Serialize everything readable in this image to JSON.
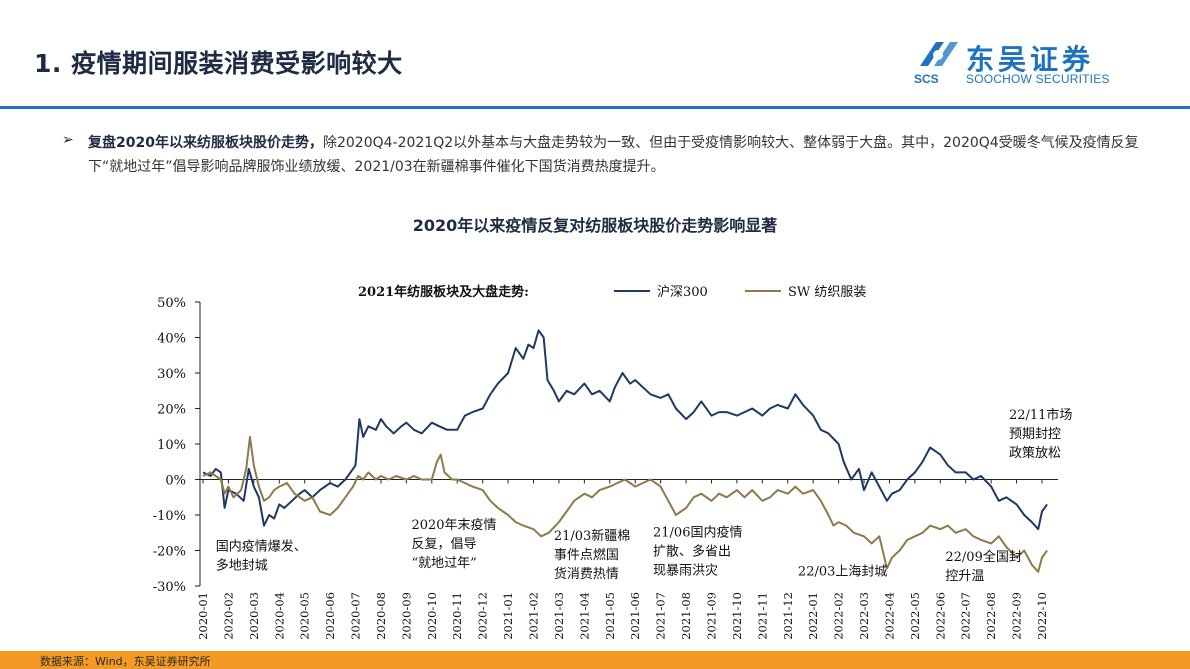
{
  "header": {
    "title": "1. 疫情期间服装消费受影响较大",
    "logo_cn": "东吴证券",
    "logo_scs": "SCS",
    "logo_en": "SOOCHOW SECURITIES"
  },
  "bullet": {
    "marker": "➢",
    "bold": "复盘2020年以来纺服板块股价走势，",
    "text": "除2020Q4-2021Q2以外基本与大盘走势较为一致、但由于受疫情影响较大、整体弱于大盘。其中，2020Q4受暖冬气候及疫情反复下“就地过年”倡导影响品牌服饰业绩放缓、2021/03在新疆棉事件催化下国货消费热度提升。"
  },
  "chart_heading": "2020年以来疫情反复对纺服板块股价走势影响显著",
  "footer": {
    "source": "数据来源：Wind，东吴证券研究所"
  },
  "chart_data": {
    "type": "line",
    "title": "2021年纺服板块及大盘走势:",
    "ylim": [
      -30,
      50
    ],
    "yticks": [
      "50%",
      "40%",
      "30%",
      "20%",
      "10%",
      "0%",
      "-10%",
      "-20%",
      "-30%"
    ],
    "xticks": [
      "2020-01",
      "2020-02",
      "2020-03",
      "2020-04",
      "2020-05",
      "2020-06",
      "2020-07",
      "2020-08",
      "2020-09",
      "2020-10",
      "2020-11",
      "2020-12",
      "2021-01",
      "2021-02",
      "2021-03",
      "2021-04",
      "2021-05",
      "2021-06",
      "2021-07",
      "2021-08",
      "2021-09",
      "2021-10",
      "2021-11",
      "2021-12",
      "2022-01",
      "2022-02",
      "2022-03",
      "2022-04",
      "2022-05",
      "2022-06",
      "2022-07",
      "2022-08",
      "2022-09",
      "2022-10"
    ],
    "legend_position": "top",
    "colors": {
      "hs300": "#1f3864",
      "sw": "#8c7a4a",
      "axis": "#222222"
    },
    "series": [
      {
        "name": "沪深300",
        "points": [
          [
            0.0,
            2
          ],
          [
            0.3,
            1
          ],
          [
            0.5,
            3
          ],
          [
            0.7,
            2
          ],
          [
            0.85,
            -8
          ],
          [
            1.0,
            -3
          ],
          [
            1.3,
            -4
          ],
          [
            1.6,
            -6
          ],
          [
            1.8,
            3
          ],
          [
            2.0,
            -2
          ],
          [
            2.2,
            -5
          ],
          [
            2.4,
            -13
          ],
          [
            2.6,
            -10
          ],
          [
            2.8,
            -11
          ],
          [
            3.0,
            -7
          ],
          [
            3.2,
            -8
          ],
          [
            3.5,
            -6
          ],
          [
            3.8,
            -4
          ],
          [
            4.0,
            -3
          ],
          [
            4.3,
            -5
          ],
          [
            4.6,
            -3
          ],
          [
            5.0,
            -1
          ],
          [
            5.3,
            -2
          ],
          [
            5.6,
            0
          ],
          [
            5.8,
            2
          ],
          [
            6.0,
            4
          ],
          [
            6.15,
            17
          ],
          [
            6.3,
            12
          ],
          [
            6.5,
            15
          ],
          [
            6.8,
            14
          ],
          [
            7.0,
            17
          ],
          [
            7.2,
            15
          ],
          [
            7.5,
            13
          ],
          [
            7.8,
            15
          ],
          [
            8.0,
            16
          ],
          [
            8.3,
            14
          ],
          [
            8.6,
            13
          ],
          [
            9.0,
            16
          ],
          [
            9.3,
            15
          ],
          [
            9.6,
            14
          ],
          [
            10.0,
            14
          ],
          [
            10.3,
            18
          ],
          [
            10.6,
            19
          ],
          [
            11.0,
            20
          ],
          [
            11.3,
            24
          ],
          [
            11.6,
            27
          ],
          [
            12.0,
            30
          ],
          [
            12.3,
            37
          ],
          [
            12.6,
            34
          ],
          [
            12.8,
            38
          ],
          [
            13.0,
            37
          ],
          [
            13.2,
            42
          ],
          [
            13.4,
            40
          ],
          [
            13.55,
            28
          ],
          [
            13.8,
            25
          ],
          [
            14.0,
            22
          ],
          [
            14.3,
            25
          ],
          [
            14.6,
            24
          ],
          [
            15.0,
            27
          ],
          [
            15.3,
            24
          ],
          [
            15.6,
            25
          ],
          [
            16.0,
            22
          ],
          [
            16.2,
            26
          ],
          [
            16.5,
            30
          ],
          [
            16.8,
            27
          ],
          [
            17.0,
            28
          ],
          [
            17.3,
            26
          ],
          [
            17.6,
            24
          ],
          [
            18.0,
            23
          ],
          [
            18.3,
            24
          ],
          [
            18.6,
            20
          ],
          [
            19.0,
            17
          ],
          [
            19.3,
            19
          ],
          [
            19.6,
            22
          ],
          [
            20.0,
            18
          ],
          [
            20.3,
            19
          ],
          [
            20.6,
            19
          ],
          [
            21.0,
            18
          ],
          [
            21.3,
            19
          ],
          [
            21.6,
            20
          ],
          [
            22.0,
            18
          ],
          [
            22.3,
            20
          ],
          [
            22.6,
            21
          ],
          [
            23.0,
            20
          ],
          [
            23.3,
            24
          ],
          [
            23.6,
            21
          ],
          [
            24.0,
            18
          ],
          [
            24.3,
            14
          ],
          [
            24.6,
            13
          ],
          [
            25.0,
            10
          ],
          [
            25.2,
            5
          ],
          [
            25.5,
            0
          ],
          [
            25.8,
            3
          ],
          [
            26.0,
            -3
          ],
          [
            26.3,
            2
          ],
          [
            26.6,
            -2
          ],
          [
            26.9,
            -6
          ],
          [
            27.1,
            -4
          ],
          [
            27.4,
            -3
          ],
          [
            27.7,
            0
          ],
          [
            28.0,
            2
          ],
          [
            28.3,
            5
          ],
          [
            28.6,
            9
          ],
          [
            28.8,
            8
          ],
          [
            29.0,
            7
          ],
          [
            29.3,
            4
          ],
          [
            29.6,
            2
          ],
          [
            30.0,
            2
          ],
          [
            30.3,
            0
          ],
          [
            30.6,
            1
          ],
          [
            31.0,
            -2
          ],
          [
            31.3,
            -6
          ],
          [
            31.6,
            -5
          ],
          [
            32.0,
            -7
          ],
          [
            32.3,
            -10
          ],
          [
            32.6,
            -12
          ],
          [
            32.85,
            -14
          ],
          [
            33.0,
            -9
          ],
          [
            33.2,
            -7
          ]
        ]
      },
      {
        "name": "SW 纺织服装",
        "points": [
          [
            0.0,
            1
          ],
          [
            0.3,
            2
          ],
          [
            0.5,
            1
          ],
          [
            0.7,
            0
          ],
          [
            0.85,
            -4
          ],
          [
            1.0,
            -2
          ],
          [
            1.2,
            -5
          ],
          [
            1.5,
            -3
          ],
          [
            1.7,
            3
          ],
          [
            1.85,
            12
          ],
          [
            2.0,
            4
          ],
          [
            2.2,
            -2
          ],
          [
            2.4,
            -6
          ],
          [
            2.6,
            -5
          ],
          [
            2.8,
            -3
          ],
          [
            3.0,
            -2
          ],
          [
            3.3,
            -1
          ],
          [
            3.6,
            -4
          ],
          [
            4.0,
            -6
          ],
          [
            4.3,
            -5
          ],
          [
            4.6,
            -9
          ],
          [
            5.0,
            -10
          ],
          [
            5.3,
            -8
          ],
          [
            5.6,
            -5
          ],
          [
            5.9,
            -2
          ],
          [
            6.1,
            1
          ],
          [
            6.3,
            0
          ],
          [
            6.5,
            2
          ],
          [
            6.8,
            0
          ],
          [
            7.0,
            1
          ],
          [
            7.3,
            0
          ],
          [
            7.6,
            1
          ],
          [
            8.0,
            0
          ],
          [
            8.3,
            1
          ],
          [
            8.6,
            0
          ],
          [
            9.0,
            0
          ],
          [
            9.2,
            5
          ],
          [
            9.35,
            7
          ],
          [
            9.5,
            2
          ],
          [
            9.8,
            0
          ],
          [
            10.0,
            0
          ],
          [
            10.3,
            -1
          ],
          [
            10.6,
            -2
          ],
          [
            11.0,
            -3
          ],
          [
            11.3,
            -6
          ],
          [
            11.6,
            -8
          ],
          [
            12.0,
            -10
          ],
          [
            12.3,
            -12
          ],
          [
            12.6,
            -13
          ],
          [
            13.0,
            -14
          ],
          [
            13.3,
            -16
          ],
          [
            13.6,
            -15
          ],
          [
            14.0,
            -12
          ],
          [
            14.3,
            -9
          ],
          [
            14.6,
            -6
          ],
          [
            15.0,
            -4
          ],
          [
            15.3,
            -5
          ],
          [
            15.6,
            -3
          ],
          [
            16.0,
            -2
          ],
          [
            16.3,
            -1
          ],
          [
            16.6,
            0
          ],
          [
            17.0,
            -2
          ],
          [
            17.3,
            -1
          ],
          [
            17.6,
            0
          ],
          [
            18.0,
            -2
          ],
          [
            18.3,
            -6
          ],
          [
            18.6,
            -10
          ],
          [
            19.0,
            -8
          ],
          [
            19.3,
            -5
          ],
          [
            19.6,
            -4
          ],
          [
            20.0,
            -6
          ],
          [
            20.3,
            -4
          ],
          [
            20.6,
            -5
          ],
          [
            21.0,
            -3
          ],
          [
            21.3,
            -5
          ],
          [
            21.6,
            -3
          ],
          [
            22.0,
            -6
          ],
          [
            22.3,
            -5
          ],
          [
            22.6,
            -3
          ],
          [
            23.0,
            -4
          ],
          [
            23.3,
            -2
          ],
          [
            23.6,
            -4
          ],
          [
            24.0,
            -3
          ],
          [
            24.3,
            -6
          ],
          [
            24.6,
            -10
          ],
          [
            24.8,
            -13
          ],
          [
            25.0,
            -12
          ],
          [
            25.3,
            -13
          ],
          [
            25.6,
            -15
          ],
          [
            26.0,
            -16
          ],
          [
            26.3,
            -18
          ],
          [
            26.6,
            -16
          ],
          [
            26.9,
            -25
          ],
          [
            27.1,
            -22
          ],
          [
            27.4,
            -20
          ],
          [
            27.7,
            -17
          ],
          [
            28.0,
            -16
          ],
          [
            28.3,
            -15
          ],
          [
            28.6,
            -13
          ],
          [
            29.0,
            -14
          ],
          [
            29.3,
            -13
          ],
          [
            29.6,
            -15
          ],
          [
            30.0,
            -14
          ],
          [
            30.3,
            -16
          ],
          [
            30.6,
            -17
          ],
          [
            31.0,
            -18
          ],
          [
            31.3,
            -16
          ],
          [
            31.6,
            -19
          ],
          [
            32.0,
            -22
          ],
          [
            32.3,
            -20
          ],
          [
            32.6,
            -24
          ],
          [
            32.85,
            -26
          ],
          [
            33.0,
            -22
          ],
          [
            33.2,
            -20
          ]
        ]
      }
    ],
    "annotations": [
      {
        "lines": [
          "国内疫情爆发、",
          "多地封城"
        ],
        "x": 0.5,
        "y": -20,
        "align": "start"
      },
      {
        "lines": [
          "2020年末疫情",
          "反复，倡导",
          "“就地过年”"
        ],
        "x": 8.2,
        "y": -14,
        "align": "start"
      },
      {
        "lines": [
          "21/03新疆棉",
          "事件点燃国",
          "货消费热情"
        ],
        "x": 13.8,
        "y": -17,
        "align": "start"
      },
      {
        "lines": [
          "21/06国内疫情",
          "扩散、多省出",
          "现暴雨洪灾"
        ],
        "x": 17.7,
        "y": -16,
        "align": "start"
      },
      {
        "lines": [
          "22/03上海封城"
        ],
        "x": 23.4,
        "y": -27,
        "align": "start"
      },
      {
        "lines": [
          "22/09全国封",
          "控升温"
        ],
        "x": 29.2,
        "y": -23,
        "align": "start"
      },
      {
        "lines": [
          "22/11市场",
          "预期封控",
          "政策放松"
        ],
        "x": 31.7,
        "y": 17,
        "align": "start"
      }
    ]
  }
}
